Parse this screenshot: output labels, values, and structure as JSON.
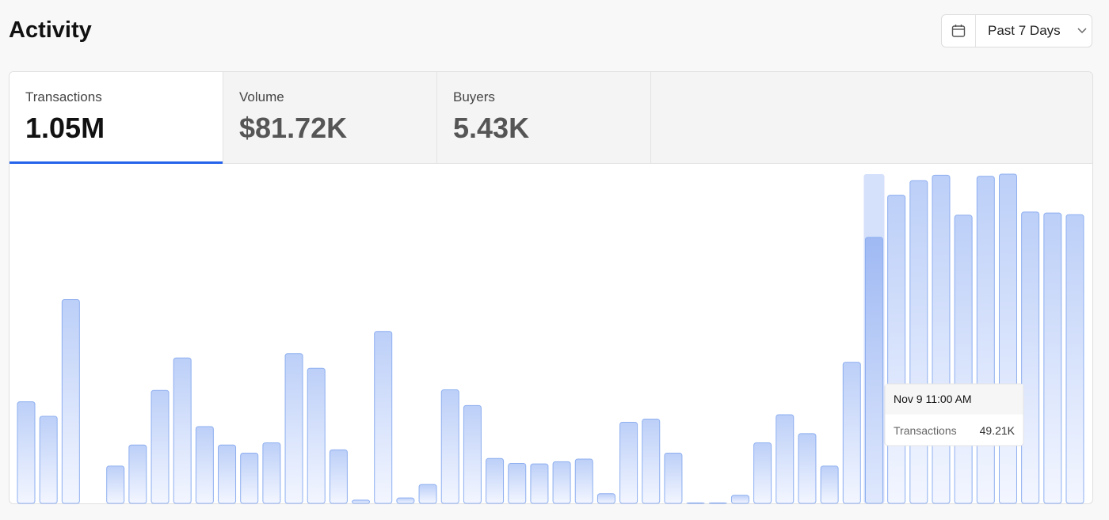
{
  "header": {
    "title": "Activity",
    "range": "Past 7 Days"
  },
  "tabs": [
    {
      "label": "Transactions",
      "value": "1.05M"
    },
    {
      "label": "Volume",
      "value": "$81.72K"
    },
    {
      "label": "Buyers",
      "value": "5.43K"
    }
  ],
  "chart_data": {
    "type": "bar",
    "values": [
      18.8,
      16.1,
      37.7,
      0,
      6.9,
      10.8,
      20.9,
      26.9,
      14.2,
      10.8,
      9.3,
      11.2,
      27.7,
      25.0,
      9.9,
      0.6,
      31.8,
      1.0,
      3.5,
      21.0,
      18.1,
      8.3,
      7.4,
      7.3,
      7.7,
      8.2,
      1.8,
      15.0,
      15.6,
      9.3,
      0.1,
      0.1,
      1.5,
      11.2,
      16.4,
      12.9,
      6.9,
      26.1,
      49.21,
      57.0,
      59.7,
      60.7,
      53.3,
      60.5,
      60.9,
      53.9,
      53.7,
      53.4
    ],
    "tooltip": {
      "index": 38,
      "date": "Nov 9 11:00 AM",
      "series": "Transactions",
      "value_label": "49.21K"
    }
  }
}
